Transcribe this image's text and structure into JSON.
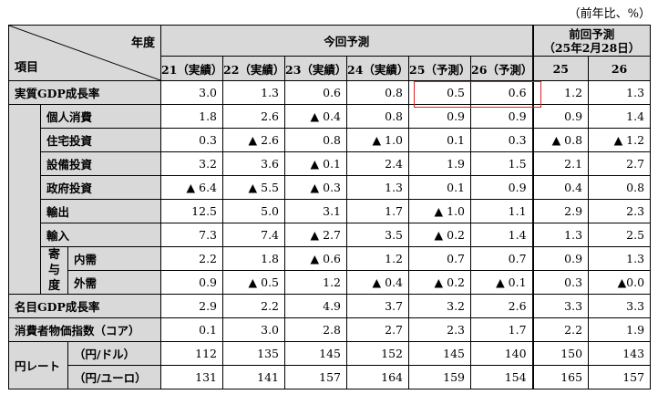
{
  "unit_note": "（前年比、%）",
  "header": {
    "nendo": "年度",
    "koumoku": "項目",
    "konkai": "今回予測",
    "zenkai_line1": "前回予測",
    "zenkai_line2": "（25年2月28日）",
    "years": [
      "21（実績）",
      "22（実績）",
      "23（実績）",
      "24（実績）",
      "25（予測）",
      "26（予測）"
    ],
    "prev_years": [
      "25",
      "26"
    ]
  },
  "rows": {
    "real_gdp": {
      "label": "実質GDP成長率",
      "values": [
        "3.0",
        "1.3",
        "0.6",
        "0.8",
        "0.5",
        "0.6"
      ],
      "prev": [
        "1.2",
        "1.3"
      ]
    },
    "consumption": {
      "label": "個人消費",
      "values": [
        "1.8",
        "2.6",
        "▲ 0.4",
        "0.8",
        "0.9",
        "0.9"
      ],
      "prev": [
        "0.9",
        "1.4"
      ]
    },
    "housing": {
      "label": "住宅投資",
      "values": [
        "0.3",
        "▲ 2.6",
        "0.8",
        "▲ 1.0",
        "0.1",
        "0.3"
      ],
      "prev": [
        "▲ 0.8",
        "▲ 1.2"
      ]
    },
    "capex": {
      "label": "設備投資",
      "values": [
        "3.2",
        "3.6",
        "▲ 0.1",
        "2.4",
        "1.9",
        "1.5"
      ],
      "prev": [
        "2.1",
        "2.7"
      ]
    },
    "government": {
      "label": "政府投資",
      "values": [
        "▲ 6.4",
        "▲ 5.5",
        "▲ 0.3",
        "1.3",
        "0.1",
        "0.9"
      ],
      "prev": [
        "0.4",
        "0.8"
      ]
    },
    "exports": {
      "label": "輸出",
      "values": [
        "12.5",
        "5.0",
        "3.1",
        "1.7",
        "▲ 1.0",
        "1.1"
      ],
      "prev": [
        "2.9",
        "2.3"
      ]
    },
    "imports": {
      "label": "輸入",
      "values": [
        "7.3",
        "7.4",
        "▲ 2.7",
        "3.5",
        "▲ 0.2",
        "1.4"
      ],
      "prev": [
        "1.3",
        "2.5"
      ]
    },
    "contrib_label": "寄与度",
    "contrib_chars": [
      "寄",
      "与",
      "度"
    ],
    "domestic": {
      "label": "内需",
      "values": [
        "2.2",
        "1.8",
        "▲ 0.6",
        "1.2",
        "0.7",
        "0.7"
      ],
      "prev": [
        "0.9",
        "1.3"
      ]
    },
    "external": {
      "label": "外需",
      "values": [
        "0.9",
        "▲ 0.5",
        "1.2",
        "▲ 0.4",
        "▲ 0.2",
        "▲ 0.1"
      ],
      "prev": [
        "0.3",
        "▲0.0"
      ]
    },
    "nominal_gdp": {
      "label": "名目GDP成長率",
      "values": [
        "2.9",
        "2.2",
        "4.9",
        "3.7",
        "3.2",
        "2.6"
      ],
      "prev": [
        "3.3",
        "3.3"
      ]
    },
    "cpi_core": {
      "label": "消費者物価指数（コア）",
      "values": [
        "0.1",
        "3.0",
        "2.8",
        "2.7",
        "2.3",
        "1.7"
      ],
      "prev": [
        "2.2",
        "1.9"
      ]
    },
    "yen_label": "円レート",
    "usd": {
      "label": "（円/ドル）",
      "values": [
        "112",
        "135",
        "145",
        "152",
        "145",
        "140"
      ],
      "prev": [
        "150",
        "143"
      ]
    },
    "eur": {
      "label": "（円/ユーロ）",
      "values": [
        "131",
        "141",
        "157",
        "164",
        "159",
        "154"
      ],
      "prev": [
        "165",
        "157"
      ]
    }
  },
  "colors": {
    "header_bg": "#d9d9d9",
    "highlight": "#e02020"
  }
}
